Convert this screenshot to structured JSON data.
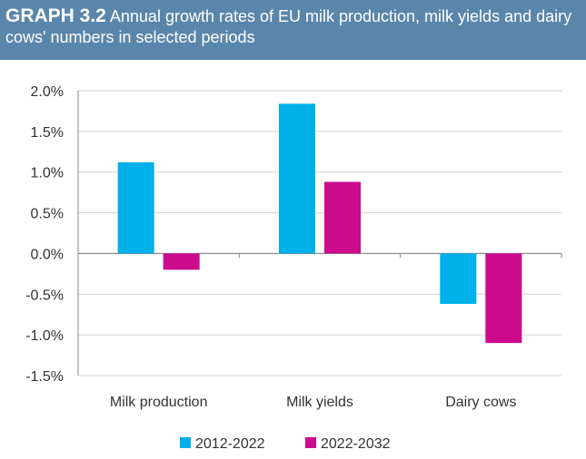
{
  "header": {
    "tag": "GRAPH 3.2",
    "title": "Annual growth rates of EU milk production, milk yields and dairy cows' numbers in selected periods"
  },
  "chart_data": {
    "type": "bar",
    "title": "Annual growth rates of EU milk production, milk yields and dairy cows' numbers in selected periods",
    "categories": [
      "Milk production",
      "Milk yields",
      "Dairy cows"
    ],
    "series": [
      {
        "name": "2012-2022",
        "values": [
          1.12,
          1.84,
          -0.62
        ],
        "color": "#00b0e8"
      },
      {
        "name": "2022-2032",
        "values": [
          -0.2,
          0.88,
          -1.1
        ],
        "color": "#cc0a8c"
      }
    ],
    "ylim": [
      -1.5,
      2.0
    ],
    "yticks": [
      "2.0%",
      "1.5%",
      "1.0%",
      "0.5%",
      "0.0%",
      "-0.5%",
      "-1.0%",
      "-1.5%"
    ],
    "ytick_values": [
      2.0,
      1.5,
      1.0,
      0.5,
      0.0,
      -0.5,
      -1.0,
      -1.5
    ],
    "grid": true,
    "legend_position": "bottom"
  }
}
